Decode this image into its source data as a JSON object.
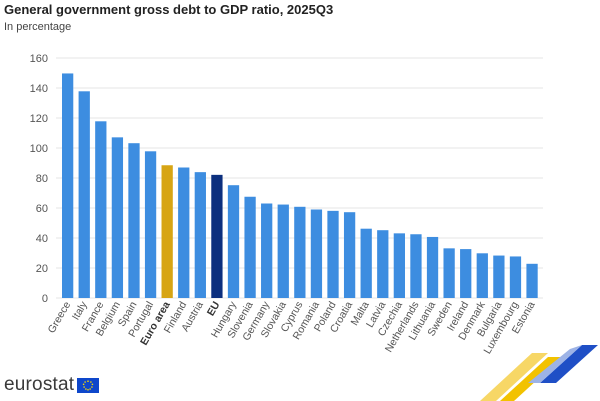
{
  "header": {
    "title": "General government gross debt to GDP ratio, 2025Q3",
    "subtitle": "In percentage"
  },
  "branding": {
    "logo_text": "eurostat",
    "logo_icon": "eu-flag-icon"
  },
  "colors": {
    "default_bar": "#3d8de0",
    "euro_area_bar": "#d7a514",
    "eu_bar": "#0c2f7e",
    "gridline": "#e6e6e6",
    "decor_yellow": "#f2c200",
    "decor_blue": "#1f4fc6"
  },
  "chart_data": {
    "type": "bar",
    "title": "General government gross debt to GDP ratio, 2025Q3",
    "subtitle": "In percentage",
    "xlabel": "",
    "ylabel": "",
    "ylim": [
      0,
      160
    ],
    "yticks": [
      0,
      20,
      40,
      60,
      80,
      100,
      120,
      140,
      160
    ],
    "grid": true,
    "categories": [
      "Greece",
      "Italy",
      "France",
      "Belgium",
      "Spain",
      "Portugal",
      "Euro area",
      "Finland",
      "Austria",
      "EU",
      "Hungary",
      "Slovenia",
      "Germany",
      "Slovakia",
      "Cyprus",
      "Romania",
      "Poland",
      "Croatia",
      "Malta",
      "Latvia",
      "Czechia",
      "Netherlands",
      "Lithuania",
      "Sweden",
      "Ireland",
      "Denmark",
      "Bulgaria",
      "Luxembourg",
      "Estonia"
    ],
    "values": [
      149.7,
      137.8,
      117.8,
      107.1,
      103.2,
      97.8,
      88.5,
      87.0,
      83.9,
      82.1,
      75.2,
      67.5,
      63.0,
      62.3,
      60.8,
      59.0,
      58.1,
      57.2,
      46.2,
      45.2,
      43.1,
      42.5,
      40.7,
      33.1,
      32.6,
      29.8,
      28.3,
      27.7,
      22.8
    ],
    "highlight": {
      "Euro area": "euro_area_bar",
      "EU": "eu_bar"
    },
    "bold_categories": [
      "Euro area",
      "EU"
    ]
  }
}
